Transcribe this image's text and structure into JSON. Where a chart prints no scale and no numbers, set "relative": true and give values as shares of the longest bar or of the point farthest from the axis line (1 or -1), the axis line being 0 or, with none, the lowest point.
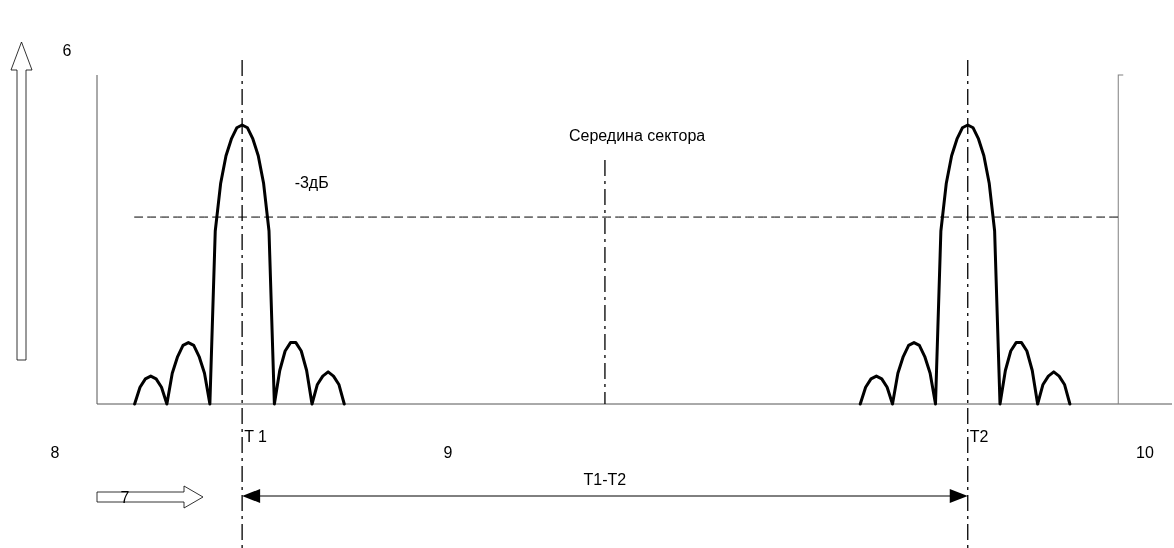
{
  "chart_data": {
    "type": "line",
    "relative": true,
    "marker": "none",
    "line_style": "solid",
    "categories": [
      null,
      null,
      null,
      null,
      null,
      null,
      null,
      null,
      null,
      null,
      null,
      null,
      null,
      null,
      null,
      null,
      null,
      null,
      null,
      null,
      null,
      null,
      null,
      null,
      null,
      null,
      null,
      null,
      null,
      null,
      null,
      null,
      null,
      null,
      null,
      null,
      null,
      null,
      null,
      null,
      null,
      null,
      null,
      null,
      null,
      null,
      null,
      null,
      null,
      null,
      null,
      null,
      null,
      null,
      null,
      null,
      null,
      null,
      null,
      null,
      null,
      null,
      null,
      null,
      null,
      null,
      null,
      null,
      null,
      null,
      null,
      null,
      null,
      null,
      null,
      null,
      null,
      null,
      null,
      null,
      null,
      null,
      null,
      null,
      null,
      null,
      null,
      null,
      null,
      null,
      null,
      null,
      null,
      null,
      null,
      null,
      null,
      null,
      null,
      null,
      null,
      null,
      null,
      null,
      null,
      null,
      null,
      null,
      null,
      null,
      null,
      null,
      null,
      null,
      null,
      null,
      null,
      null,
      null,
      null,
      null,
      null,
      null,
      null,
      null,
      null,
      null,
      null,
      null,
      null,
      null,
      null,
      null,
      null,
      null,
      null,
      null,
      null,
      null,
      null,
      null,
      null,
      null,
      null,
      null,
      null,
      null,
      null,
      null,
      null,
      null,
      null,
      null,
      null,
      null,
      null,
      null,
      null,
      null,
      null,
      null,
      null,
      null,
      null,
      null,
      null,
      null,
      null,
      null,
      null,
      null,
      null,
      null,
      null,
      null,
      null,
      null,
      null,
      null,
      null,
      null,
      null,
      null,
      null,
      null,
      null,
      null,
      null,
      null,
      null,
      null,
      null,
      null,
      null,
      null,
      null,
      null,
      null,
      null,
      null,
      null
    ],
    "series": [
      {
        "color": "#000000",
        "values": [
          null,
          null,
          null,
          null,
          null,
          null,
          null,
          0,
          0.06,
          0.09,
          0.1,
          0.09,
          0.06,
          0,
          0.11,
          0.17,
          0.21,
          0.22,
          0.21,
          0.17,
          0.11,
          0,
          0.62,
          0.79,
          0.89,
          0.95,
          0.99,
          1,
          0.99,
          0.95,
          0.89,
          0.79,
          0.62,
          0,
          0.12,
          0.19,
          0.22,
          0.22,
          0.19,
          0.12,
          0,
          0.07,
          0.1,
          0.115,
          0.1,
          0.07,
          0,
          null,
          null,
          null,
          null,
          null,
          null,
          null,
          null,
          null,
          null,
          null,
          null,
          null,
          null,
          null,
          null,
          null,
          null,
          null,
          null,
          null,
          null,
          null,
          null,
          null,
          null,
          null,
          null,
          null,
          null,
          null,
          null,
          null,
          null,
          null,
          null,
          null,
          null,
          null,
          null,
          null,
          null,
          null,
          null,
          null,
          null,
          null,
          null,
          null,
          null,
          null,
          null,
          null,
          null,
          null,
          null,
          null,
          null,
          null,
          null,
          null,
          null,
          null,
          null,
          null,
          null,
          null,
          null,
          null,
          null,
          null,
          null,
          null,
          null,
          null,
          null,
          null,
          null,
          null,
          null,
          null,
          null,
          null,
          null,
          null,
          null,
          null,
          null,
          null,
          null,
          null,
          null,
          null,
          null,
          null,
          null,
          null,
          null,
          null,
          null,
          null,
          null,
          null,
          null,
          null,
          null,
          null,
          null,
          null,
          null,
          null,
          null,
          null,
          null,
          null,
          null,
          null,
          null,
          null,
          null,
          null,
          null,
          null,
          null,
          null,
          null,
          null,
          null,
          null,
          null,
          null,
          null,
          null,
          null,
          null,
          null,
          null,
          null,
          null,
          null,
          null,
          null,
          null,
          null,
          null,
          null,
          null,
          null,
          null,
          null,
          null,
          null,
          null,
          null
        ]
      },
      {
        "color": "#000000",
        "values": [
          null,
          null,
          null,
          null,
          null,
          null,
          null,
          null,
          null,
          null,
          null,
          null,
          null,
          null,
          null,
          null,
          null,
          null,
          null,
          null,
          null,
          null,
          null,
          null,
          null,
          null,
          null,
          null,
          null,
          null,
          null,
          null,
          null,
          null,
          null,
          null,
          null,
          null,
          null,
          null,
          null,
          null,
          null,
          null,
          null,
          null,
          null,
          null,
          null,
          null,
          null,
          null,
          null,
          null,
          null,
          null,
          null,
          null,
          null,
          null,
          null,
          null,
          null,
          null,
          null,
          null,
          null,
          null,
          null,
          null,
          null,
          null,
          null,
          null,
          null,
          null,
          null,
          null,
          null,
          null,
          null,
          null,
          null,
          null,
          null,
          null,
          null,
          null,
          null,
          null,
          null,
          null,
          null,
          null,
          null,
          null,
          null,
          null,
          null,
          null,
          null,
          null,
          null,
          null,
          null,
          null,
          null,
          null,
          null,
          null,
          null,
          null,
          null,
          null,
          null,
          null,
          null,
          null,
          null,
          null,
          null,
          null,
          null,
          null,
          null,
          null,
          null,
          null,
          null,
          null,
          null,
          null,
          null,
          null,
          null,
          null,
          null,
          null,
          null,
          null,
          null,
          null,
          0,
          0.06,
          0.09,
          0.1,
          0.09,
          0.06,
          0,
          0.11,
          0.17,
          0.21,
          0.22,
          0.21,
          0.17,
          0.11,
          0,
          0.62,
          0.79,
          0.89,
          0.95,
          0.99,
          1,
          0.99,
          0.95,
          0.89,
          0.79,
          0.62,
          0,
          0.12,
          0.19,
          0.22,
          0.22,
          0.19,
          0.12,
          0,
          0.07,
          0.1,
          0.115,
          0.1,
          0.07,
          0,
          null,
          null,
          null,
          null,
          null,
          null,
          null,
          null,
          null,
          null,
          null,
          null,
          null,
          null,
          null,
          null,
          null,
          null,
          null
        ]
      },
      {
        "name": "-3дБ",
        "color": "#000000",
        "line_style": "dashed",
        "values": [
          null,
          null,
          null,
          null,
          null,
          null,
          null,
          0.67,
          0.67,
          0.67,
          0.67,
          0.67,
          0.67,
          0.67,
          0.67,
          0.67,
          0.67,
          0.67,
          0.67,
          0.67,
          0.67,
          0.67,
          0.67,
          0.67,
          0.67,
          0.67,
          0.67,
          0.67,
          0.67,
          0.67,
          0.67,
          0.67,
          0.67,
          0.67,
          0.67,
          0.67,
          0.67,
          0.67,
          0.67,
          0.67,
          0.67,
          0.67,
          0.67,
          0.67,
          0.67,
          0.67,
          0.67,
          0.67,
          0.67,
          0.67,
          0.67,
          0.67,
          0.67,
          0.67,
          0.67,
          0.67,
          0.67,
          0.67,
          0.67,
          0.67,
          0.67,
          0.67,
          0.67,
          0.67,
          0.67,
          0.67,
          0.67,
          0.67,
          0.67,
          0.67,
          0.67,
          0.67,
          0.67,
          0.67,
          0.67,
          0.67,
          0.67,
          0.67,
          0.67,
          0.67,
          0.67,
          0.67,
          0.67,
          0.67,
          0.67,
          0.67,
          0.67,
          0.67,
          0.67,
          0.67,
          0.67,
          0.67,
          0.67,
          0.67,
          0.67,
          0.67,
          0.67,
          0.67,
          0.67,
          0.67,
          0.67,
          0.67,
          0.67,
          0.67,
          0.67,
          0.67,
          0.67,
          0.67,
          0.67,
          0.67,
          0.67,
          0.67,
          0.67,
          0.67,
          0.67,
          0.67,
          0.67,
          0.67,
          0.67,
          0.67,
          0.67,
          0.67,
          0.67,
          0.67,
          0.67,
          0.67,
          0.67,
          0.67,
          0.67,
          0.67,
          0.67,
          0.67,
          0.67,
          0.67,
          0.67,
          0.67,
          0.67,
          0.67,
          0.67,
          0.67,
          0.67,
          0.67,
          0.67,
          0.67,
          0.67,
          0.67,
          0.67,
          0.67,
          0.67,
          0.67,
          0.67,
          0.67,
          0.67,
          0.67,
          0.67,
          0.67,
          0.67,
          0.67,
          0.67,
          0.67,
          0.67,
          0.67,
          0.67,
          0.67,
          0.67,
          0.67,
          0.67,
          0.67,
          0.67,
          0.67,
          0.67,
          0.67,
          0.67,
          0.67,
          0.67,
          0.67,
          0.67,
          0.67,
          0.67,
          0.67,
          0.67,
          0.67,
          0.67,
          0.67,
          0.67,
          0.67,
          0.67,
          0.67,
          0.67,
          0.67,
          0.67,
          null,
          null,
          null,
          null,
          null,
          null,
          null,
          null,
          null,
          null
        ]
      }
    ],
    "annotations": [
      "T 1",
      "T2",
      "Середина сектора",
      "6",
      "7",
      "8",
      "9",
      "10",
      "T1-T2"
    ]
  }
}
